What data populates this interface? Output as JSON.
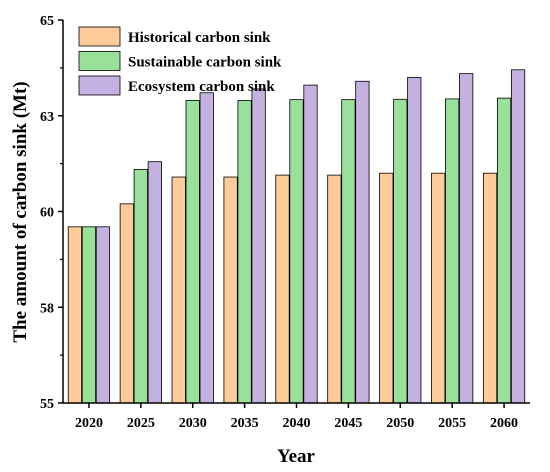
{
  "chart_data": {
    "type": "bar",
    "xlabel": "Year",
    "ylabel": "The amount of carbon sink (Mt)",
    "categories": [
      "2020",
      "2025",
      "2030",
      "2035",
      "2040",
      "2045",
      "2050",
      "2055",
      "2060"
    ],
    "ylim": [
      55,
      65
    ],
    "yticks": [
      "55",
      "58",
      "60",
      "63",
      "65"
    ],
    "legend_position": "top-left",
    "grid": false,
    "series": [
      {
        "name": "Historical carbon sink",
        "color": "#FFCC99",
        "values": [
          59.6,
          60.2,
          60.9,
          60.9,
          60.95,
          60.95,
          61.0,
          61.0,
          61.0
        ]
      },
      {
        "name": "Sustainable carbon sink",
        "color": "#99E19B",
        "values": [
          59.6,
          61.1,
          62.9,
          62.9,
          62.92,
          62.92,
          62.93,
          62.94,
          62.96
        ]
      },
      {
        "name": "Ecosystem carbon sink",
        "color": "#C4B1E1",
        "values": [
          59.6,
          61.3,
          63.1,
          63.2,
          63.3,
          63.4,
          63.5,
          63.6,
          63.7
        ]
      }
    ]
  }
}
